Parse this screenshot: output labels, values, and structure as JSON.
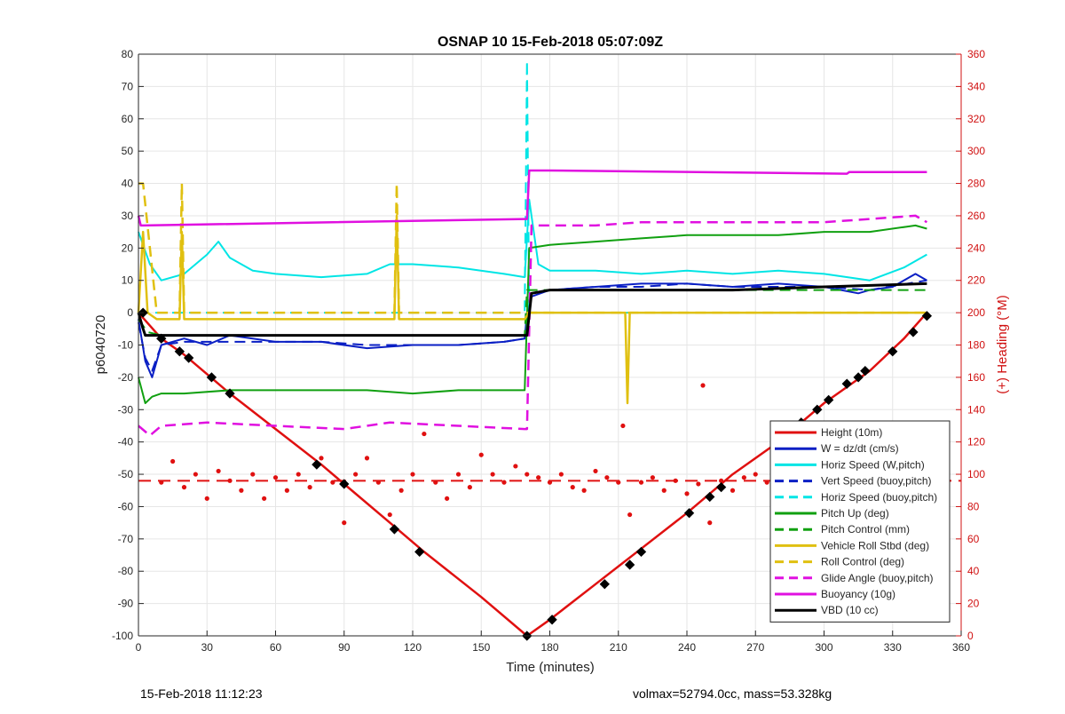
{
  "chart_data": {
    "type": "line",
    "title": "OSNAP 10 15-Feb-2018 05:07:09Z",
    "xlabel": "Time (minutes)",
    "ylabel": "p6040720",
    "y2label": "(+) Heading (°M)",
    "xlim": [
      0,
      360
    ],
    "ylim": [
      -100,
      80
    ],
    "y2lim": [
      0,
      360
    ],
    "xticks": [
      0,
      30,
      60,
      90,
      120,
      150,
      180,
      210,
      240,
      270,
      300,
      330,
      360
    ],
    "yticks": [
      -100,
      -90,
      -80,
      -70,
      -60,
      -50,
      -40,
      -30,
      -20,
      -10,
      0,
      10,
      20,
      30,
      40,
      50,
      60,
      70,
      80
    ],
    "y2ticks": [
      0,
      20,
      40,
      60,
      80,
      100,
      120,
      140,
      160,
      180,
      200,
      220,
      240,
      260,
      280,
      300,
      320,
      340,
      360
    ],
    "grid": true,
    "legend_position": "bottom-right",
    "series": [
      {
        "name": "Height (10m)",
        "color": "#e01010",
        "style": "solid",
        "width": 2.5,
        "x": [
          0,
          5,
          10,
          20,
          30,
          40,
          60,
          80,
          90,
          110,
          125,
          150,
          170,
          180,
          200,
          220,
          240,
          260,
          280,
          300,
          320,
          335,
          345
        ],
        "y": [
          0,
          -4,
          -8,
          -13,
          -19,
          -25,
          -36,
          -47,
          -53,
          -65,
          -74,
          -88,
          -100,
          -95,
          -84,
          -73,
          -62,
          -50,
          -40,
          -28,
          -18,
          -8,
          0
        ]
      },
      {
        "name": "W = dz/dt (cm/s)",
        "color": "#0a1fc4",
        "style": "solid",
        "width": 2,
        "x": [
          0,
          3,
          6,
          10,
          20,
          30,
          40,
          60,
          80,
          100,
          120,
          140,
          160,
          169,
          170,
          172,
          180,
          200,
          220,
          240,
          260,
          280,
          300,
          315,
          320,
          330,
          340,
          345
        ],
        "y": [
          -2,
          -15,
          -20,
          -10,
          -8,
          -10,
          -7,
          -9,
          -9,
          -11,
          -10,
          -10,
          -9,
          -8,
          0,
          5,
          7,
          8,
          9,
          9,
          8,
          9,
          8,
          6,
          7,
          8,
          12,
          10
        ]
      },
      {
        "name": "Horiz Speed (W,pitch)",
        "color": "#00e5e5",
        "style": "solid",
        "width": 2,
        "x": [
          0,
          5,
          10,
          20,
          30,
          35,
          40,
          50,
          60,
          80,
          100,
          110,
          120,
          140,
          160,
          169,
          171,
          175,
          180,
          200,
          220,
          240,
          260,
          280,
          300,
          320,
          335,
          345
        ],
        "y": [
          25,
          15,
          10,
          12,
          18,
          22,
          17,
          13,
          12,
          11,
          12,
          15,
          15,
          14,
          12,
          11,
          35,
          15,
          13,
          13,
          12,
          13,
          12,
          13,
          12,
          10,
          14,
          18
        ]
      },
      {
        "name": "Vert Speed (buoy,pitch)",
        "color": "#0a1fc4",
        "style": "dashed",
        "width": 2,
        "x": [
          0,
          3,
          6,
          10,
          20,
          40,
          60,
          80,
          100,
          120,
          140,
          160,
          169,
          172,
          180,
          200,
          220,
          240,
          260,
          280,
          300,
          320,
          345
        ],
        "y": [
          -3,
          -14,
          -18,
          -10,
          -9,
          -9,
          -9,
          -9,
          -10,
          -10,
          -10,
          -9,
          -8,
          6,
          7,
          8,
          8,
          9,
          8,
          8,
          8,
          7,
          10
        ]
      },
      {
        "name": "Horiz Speed (buoy,pitch)",
        "color": "#00e5e5",
        "style": "dashed",
        "width": 2,
        "x": [
          0,
          5,
          10,
          40,
          80,
          120,
          160,
          169,
          170,
          171,
          180,
          220,
          260,
          300,
          345
        ],
        "y": [
          0,
          0,
          0,
          0,
          0,
          0,
          0,
          0,
          78,
          0,
          0,
          0,
          0,
          0,
          0
        ]
      },
      {
        "name": "Pitch Up (deg)",
        "color": "#10a010",
        "style": "solid",
        "width": 2,
        "x": [
          0,
          3,
          6,
          10,
          20,
          40,
          60,
          80,
          100,
          120,
          140,
          160,
          169,
          171,
          180,
          200,
          220,
          240,
          260,
          280,
          300,
          320,
          340,
          345
        ],
        "y": [
          -20,
          -28,
          -26,
          -25,
          -25,
          -24,
          -24,
          -24,
          -24,
          -25,
          -24,
          -24,
          -24,
          20,
          21,
          22,
          23,
          24,
          24,
          24,
          25,
          25,
          27,
          26
        ]
      },
      {
        "name": "Pitch Control (mm)",
        "color": "#10a010",
        "style": "dashed",
        "width": 2,
        "x": [
          0,
          4,
          10,
          40,
          80,
          120,
          169,
          170,
          172,
          200,
          240,
          280,
          320,
          345
        ],
        "y": [
          -2,
          -6,
          -7,
          -7,
          -7,
          -7,
          -7,
          7,
          7,
          7,
          7,
          7,
          7,
          7
        ]
      },
      {
        "name": "Vehicle Roll Stbd (deg)",
        "color": "#e0c010",
        "style": "solid",
        "width": 2.5,
        "x": [
          0,
          2,
          4,
          8,
          18,
          19,
          20,
          30,
          40,
          78,
          90,
          112,
          113,
          114,
          124,
          169,
          171,
          180,
          200,
          213,
          214,
          215,
          250,
          273,
          310,
          330,
          345
        ],
        "y": [
          0,
          25,
          0,
          -2,
          -2,
          25,
          -2,
          -2,
          -2,
          -2,
          -2,
          -2,
          30,
          -2,
          -2,
          -2,
          0,
          0,
          0,
          0,
          -28,
          0,
          0,
          0,
          0,
          0,
          0
        ]
      },
      {
        "name": "Roll Control (deg)",
        "color": "#e0c010",
        "style": "dashed",
        "width": 2.5,
        "x": [
          0,
          2,
          8,
          18,
          19,
          20,
          112,
          113,
          114,
          169,
          171,
          180,
          345
        ],
        "y": [
          40,
          40,
          0,
          0,
          40,
          0,
          0,
          40,
          0,
          0,
          0,
          0,
          0
        ]
      },
      {
        "name": "Glide Angle (buoy,pitch)",
        "color": "#e010e0",
        "style": "dashed",
        "width": 2.5,
        "x": [
          0,
          5,
          10,
          30,
          60,
          90,
          110,
          140,
          169,
          170,
          172,
          180,
          200,
          220,
          240,
          260,
          280,
          300,
          320,
          340,
          345
        ],
        "y": [
          -35,
          -38,
          -35,
          -34,
          -35,
          -36,
          -34,
          -35,
          -36,
          -36,
          27,
          27,
          27,
          28,
          28,
          28,
          28,
          28,
          29,
          30,
          28
        ]
      },
      {
        "name": "Buoyancy (10g)",
        "color": "#e010e0",
        "style": "solid",
        "width": 2.5,
        "x": [
          0,
          1,
          2,
          169,
          170,
          171,
          172,
          180,
          310,
          311,
          345
        ],
        "y": [
          30,
          27,
          27,
          29,
          29,
          44,
          44,
          44,
          43,
          43.5,
          43.5
        ]
      },
      {
        "name": "VBD (10 cc)",
        "color": "#000000",
        "style": "solid",
        "width": 3,
        "x": [
          0,
          2,
          3,
          169,
          170,
          172,
          180,
          200,
          260,
          300,
          345
        ],
        "y": [
          0,
          -5,
          -7,
          -7,
          -7,
          6,
          7,
          7,
          7,
          8,
          9
        ]
      }
    ],
    "heading_series": {
      "color": "#e01010",
      "axis": "right",
      "style": "dots",
      "reference_level": 96,
      "x": [
        10,
        15,
        20,
        25,
        30,
        35,
        40,
        45,
        50,
        55,
        60,
        65,
        70,
        75,
        80,
        85,
        90,
        95,
        100,
        105,
        110,
        115,
        120,
        125,
        130,
        135,
        140,
        145,
        150,
        155,
        160,
        165,
        170,
        175,
        180,
        185,
        190,
        195,
        200,
        205,
        210,
        212,
        215,
        220,
        225,
        230,
        235,
        240,
        245,
        247,
        250,
        255,
        260,
        265,
        270,
        275,
        280,
        285,
        290,
        295,
        300,
        305,
        310,
        315,
        320,
        325,
        330,
        335,
        340,
        345
      ],
      "y": [
        95,
        108,
        92,
        100,
        85,
        102,
        96,
        90,
        100,
        85,
        98,
        90,
        100,
        92,
        110,
        95,
        70,
        100,
        110,
        95,
        75,
        90,
        100,
        125,
        95,
        85,
        100,
        92,
        112,
        100,
        95,
        105,
        100,
        98,
        95,
        100,
        92,
        90,
        102,
        98,
        95,
        130,
        75,
        95,
        98,
        90,
        96,
        88,
        94,
        155,
        70,
        96,
        90,
        98,
        100,
        95,
        92,
        95,
        96,
        98,
        80,
        96,
        115,
        88,
        98,
        110,
        96,
        85,
        120,
        130
      ]
    },
    "height_markers": {
      "x": [
        2,
        10,
        18,
        22,
        32,
        40,
        78,
        90,
        112,
        123,
        170,
        181,
        204,
        215,
        220,
        241,
        250,
        255,
        283,
        288,
        290,
        297,
        302,
        310,
        315,
        318,
        330,
        339,
        345
      ],
      "y": [
        0,
        -8,
        -12,
        -14,
        -20,
        -25,
        -47,
        -53,
        -67,
        -74,
        -100,
        -95,
        -84,
        -78,
        -74,
        -62,
        -57,
        -54,
        -40,
        -36,
        -34,
        -30,
        -27,
        -22,
        -20,
        -18,
        -12,
        -6,
        -1
      ]
    }
  },
  "footer": {
    "left": "15-Feb-2018 11:12:23",
    "right": "volmax=52794.0cc, mass=53.328kg"
  }
}
